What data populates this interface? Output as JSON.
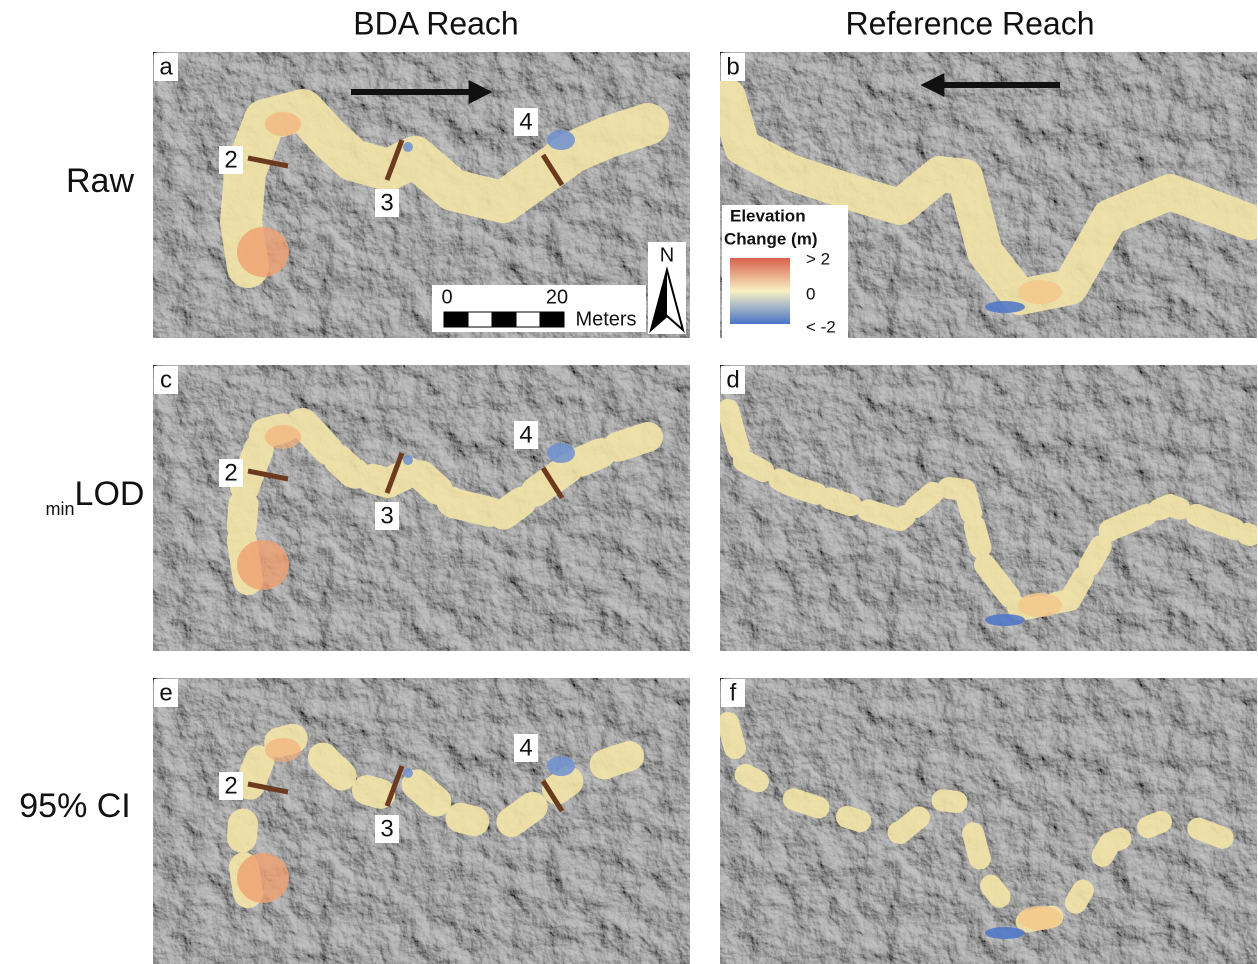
{
  "columns": [
    "BDA Reach",
    "Reference Reach"
  ],
  "rows": [
    {
      "main": "Raw"
    },
    {
      "sub": "min",
      "main": "LOD"
    },
    {
      "main": "95% CI"
    }
  ],
  "panels": [
    "a",
    "b",
    "c",
    "d",
    "e",
    "f"
  ],
  "cross_sections": [
    "2",
    "3",
    "4"
  ],
  "scale_bar": {
    "ticks": [
      "0",
      "20"
    ],
    "unit": "Meters"
  },
  "north": "N",
  "legend": {
    "title": [
      "Elevation",
      "Change (m)"
    ],
    "labels": [
      "> 2",
      "0",
      "< -2"
    ]
  }
}
